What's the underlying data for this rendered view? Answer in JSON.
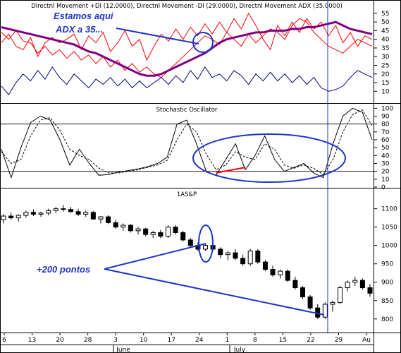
{
  "chart_data": [
    {
      "type": "line",
      "title": "Directnl Movement +DI (12.0000), Directnl Movement -DI (29.0000), Directnl Movement ADX (35.0000)",
      "ylim": [
        4,
        57
      ],
      "y_ticks": [
        10,
        15,
        20,
        25,
        30,
        35,
        40,
        45,
        50,
        55
      ],
      "annotations": [
        "Estamos aqui",
        "ADX a 35..."
      ],
      "series": [
        {
          "color": "#ff0000",
          "values": [
            38,
            43,
            36,
            34,
            41,
            30,
            38,
            41,
            38,
            40,
            43,
            34,
            42,
            38,
            44,
            33,
            38,
            45,
            36,
            40,
            28,
            36,
            43,
            39,
            46,
            40,
            47,
            42,
            49,
            43,
            50,
            44,
            52,
            46,
            55,
            48,
            40,
            34,
            48,
            42,
            50,
            44,
            52,
            46,
            50,
            42,
            48,
            38,
            44,
            36,
            42,
            40
          ]
        },
        {
          "color": "#ff0000",
          "values": [
            44,
            40,
            45,
            39,
            38,
            32,
            36,
            31,
            34,
            29,
            33,
            28,
            31,
            26,
            30,
            24,
            28,
            22,
            26,
            21,
            24,
            20,
            18,
            22,
            26,
            30,
            34,
            38,
            42,
            40,
            37,
            44,
            40,
            36,
            43,
            38,
            42,
            46,
            44,
            40,
            48,
            52,
            50,
            44,
            40,
            36,
            34,
            32,
            36,
            40,
            38,
            36
          ]
        },
        {
          "color": "#800080",
          "values": [
            47,
            46,
            45,
            44,
            43,
            42,
            41,
            40,
            39,
            38,
            37,
            35,
            33,
            32,
            30,
            28,
            26,
            24,
            22,
            20,
            19,
            19,
            20,
            22,
            24,
            26,
            28,
            30,
            32,
            35,
            38,
            40,
            41,
            42,
            43,
            44,
            44,
            45,
            45,
            45,
            46,
            46,
            47,
            47,
            48,
            49,
            50,
            48,
            46,
            45,
            44,
            43
          ]
        },
        {
          "color": "#000080",
          "values": [
            13,
            8,
            15,
            20,
            16,
            22,
            17,
            24,
            18,
            14,
            20,
            16,
            12,
            17,
            14,
            18,
            13,
            17,
            12,
            16,
            12,
            15,
            18,
            14,
            19,
            15,
            22,
            17,
            24,
            18,
            20,
            16,
            22,
            19,
            14,
            20,
            16,
            21,
            16,
            20,
            15,
            19,
            14,
            18,
            12,
            10,
            11,
            13,
            18,
            22,
            20,
            18
          ]
        }
      ]
    },
    {
      "type": "line",
      "title": "Stochastic Oscillator",
      "ylim": [
        0,
        103
      ],
      "y_ticks": [
        0,
        10,
        20,
        30,
        40,
        50,
        60,
        70,
        80,
        90,
        100
      ],
      "series": [
        {
          "color": "#000000",
          "values": [
            48,
            12,
            50,
            82,
            90,
            85,
            60,
            28,
            48,
            30,
            15,
            16,
            19,
            21,
            23,
            26,
            30,
            38,
            80,
            85,
            55,
            20,
            15,
            35,
            55,
            22,
            40,
            65,
            35,
            20,
            25,
            30,
            18,
            12,
            55,
            90,
            100,
            95,
            60
          ]
        },
        {
          "color": "#000000",
          "values": [
            45,
            30,
            35,
            65,
            85,
            88,
            72,
            48,
            40,
            35,
            24,
            18,
            18,
            20,
            22,
            25,
            28,
            34,
            60,
            80,
            70,
            42,
            22,
            28,
            45,
            38,
            35,
            55,
            48,
            28,
            24,
            28,
            24,
            16,
            35,
            70,
            92,
            98,
            78
          ]
        }
      ],
      "annotations": [
        {
          "color": "#ff0000",
          "from": [
            22,
            18
          ],
          "to": [
            25,
            25
          ]
        }
      ]
    },
    {
      "type": "candlestick",
      "title": "1AS&P",
      "ylim": [
        765,
        1130
      ],
      "y_ticks": [
        800,
        850,
        900,
        950,
        1000,
        1050,
        1100
      ],
      "x_tick_labels": [
        "6",
        "13",
        "20",
        "28",
        "3",
        "10",
        "17",
        "24",
        "1",
        "8",
        "15",
        "22",
        "29",
        "Au"
      ],
      "month_labels": [
        "June",
        "July"
      ],
      "annotations": [
        "+200 pontos"
      ],
      "series": [
        {
          "values": [
            [
              1070,
              1085,
              1060,
              1080
            ],
            [
              1080,
              1090,
              1070,
              1075
            ],
            [
              1075,
              1085,
              1065,
              1082
            ],
            [
              1082,
              1095,
              1075,
              1090
            ],
            [
              1090,
              1098,
              1080,
              1085
            ],
            [
              1085,
              1092,
              1078,
              1088
            ],
            [
              1088,
              1100,
              1082,
              1095
            ],
            [
              1095,
              1105,
              1088,
              1100
            ],
            [
              1100,
              1110,
              1092,
              1098
            ],
            [
              1098,
              1105,
              1090,
              1092
            ],
            [
              1092,
              1100,
              1080,
              1085
            ],
            [
              1085,
              1095,
              1078,
              1090
            ],
            [
              1090,
              1094,
              1070,
              1072
            ],
            [
              1072,
              1080,
              1060,
              1078
            ],
            [
              1078,
              1082,
              1058,
              1062
            ],
            [
              1062,
              1070,
              1045,
              1050
            ],
            [
              1050,
              1060,
              1040,
              1055
            ],
            [
              1055,
              1058,
              1035,
              1040
            ],
            [
              1040,
              1050,
              1030,
              1045
            ],
            [
              1045,
              1048,
              1025,
              1030
            ],
            [
              1030,
              1040,
              1020,
              1035
            ],
            [
              1035,
              1042,
              1020,
              1025
            ],
            [
              1025,
              1055,
              1020,
              1050
            ],
            [
              1050,
              1055,
              1030,
              1035
            ],
            [
              1035,
              1040,
              1010,
              1015
            ],
            [
              1015,
              1020,
              995,
              1000
            ],
            [
              1000,
              1008,
              985,
              990
            ],
            [
              990,
              1005,
              985,
              1000
            ],
            [
              1000,
              1010,
              985,
              990
            ],
            [
              990,
              995,
              965,
              975
            ],
            [
              975,
              985,
              960,
              980
            ],
            [
              980,
              990,
              960,
              965
            ],
            [
              965,
              975,
              945,
              950
            ],
            [
              950,
              990,
              945,
              985
            ],
            [
              985,
              990,
              950,
              955
            ],
            [
              955,
              960,
              930,
              935
            ],
            [
              935,
              945,
              915,
              920
            ],
            [
              920,
              935,
              910,
              930
            ],
            [
              930,
              935,
              900,
              905
            ],
            [
              905,
              915,
              880,
              885
            ],
            [
              885,
              890,
              855,
              860
            ],
            [
              860,
              865,
              825,
              830
            ],
            [
              830,
              840,
              800,
              805
            ],
            [
              805,
              845,
              800,
              840
            ],
            [
              840,
              850,
              820,
              845
            ],
            [
              845,
              890,
              840,
              885
            ],
            [
              885,
              905,
              875,
              900
            ],
            [
              900,
              915,
              890,
              905
            ],
            [
              905,
              910,
              880,
              885
            ],
            [
              885,
              895,
              860,
              870
            ]
          ]
        }
      ]
    }
  ]
}
